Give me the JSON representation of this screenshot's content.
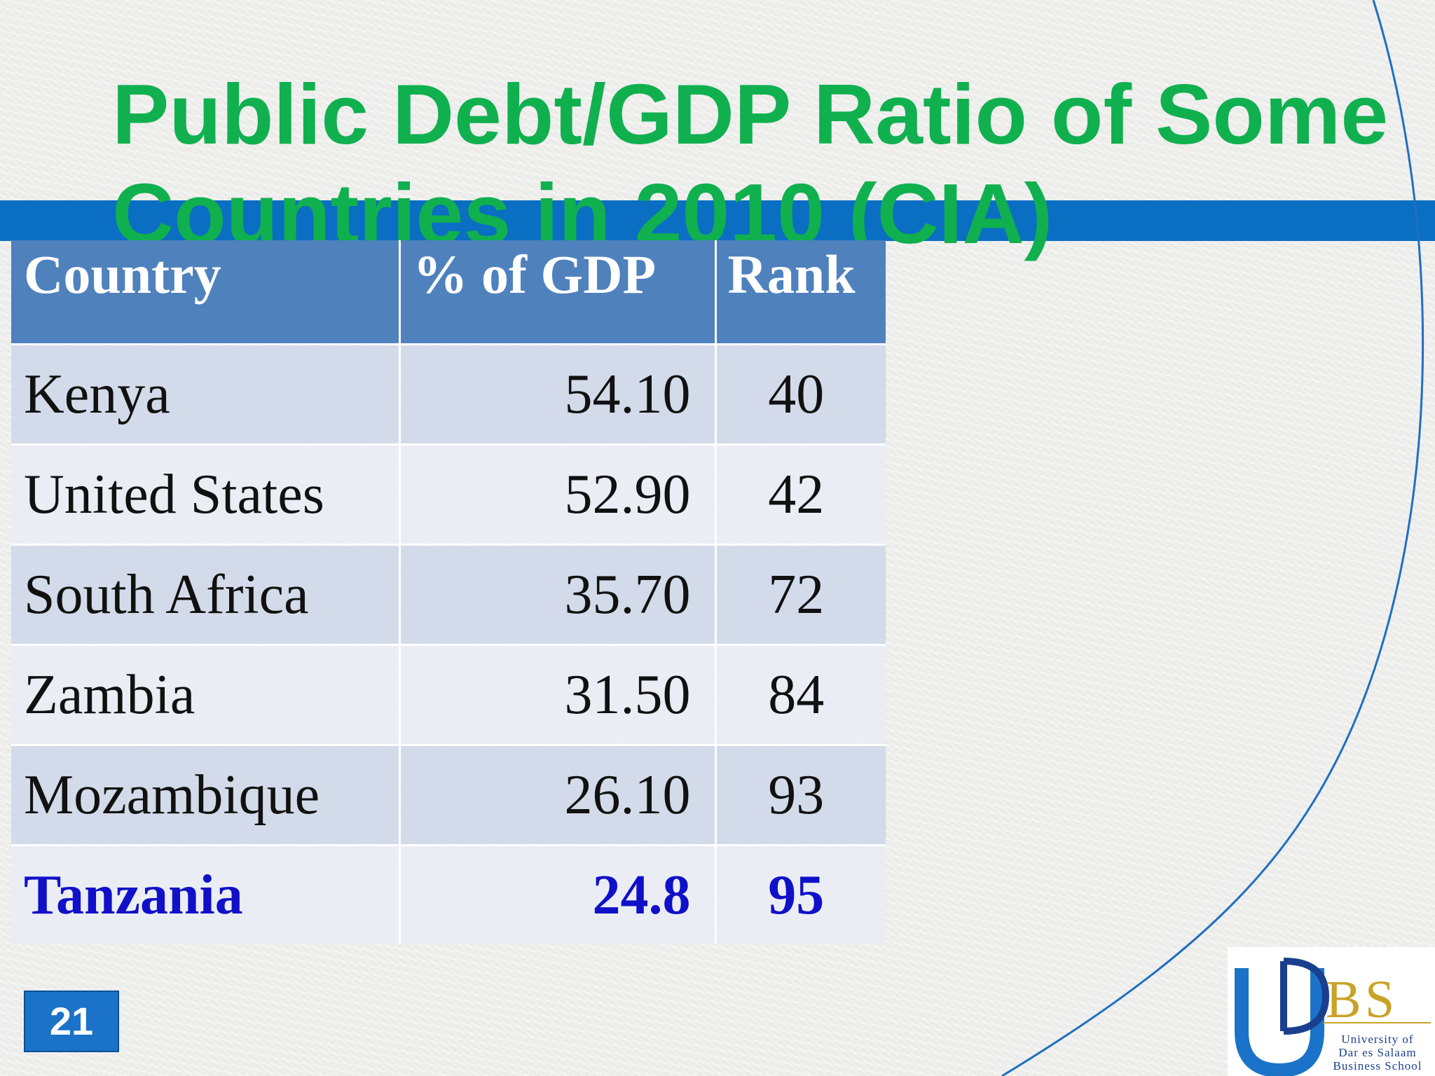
{
  "title": "Public Debt/GDP Ratio of Some Countries in 2010 (CIA)",
  "table": {
    "headers": [
      "Country",
      "% of GDP",
      "Rank"
    ],
    "rows": [
      {
        "country": "Kenya",
        "pct": "54.10",
        "rank": "40"
      },
      {
        "country": "United States",
        "pct": "52.90",
        "rank": "42"
      },
      {
        "country": "South Africa",
        "pct": "35.70",
        "rank": "72"
      },
      {
        "country": "Zambia",
        "pct": "31.50",
        "rank": "84"
      },
      {
        "country": "Mozambique",
        "pct": "26.10",
        "rank": "93"
      },
      {
        "country": "Tanzania",
        "pct": "24.8",
        "rank": "95"
      }
    ]
  },
  "slide_number": "21",
  "logo": {
    "mark": "UDBS",
    "line1": "University of",
    "line2": "Dar es Salaam",
    "line3": "Business School"
  },
  "colors": {
    "title": "#10b04f",
    "band": "#0a6fc2",
    "table_header": "#4f81bd",
    "highlight_text": "#1010c8"
  }
}
